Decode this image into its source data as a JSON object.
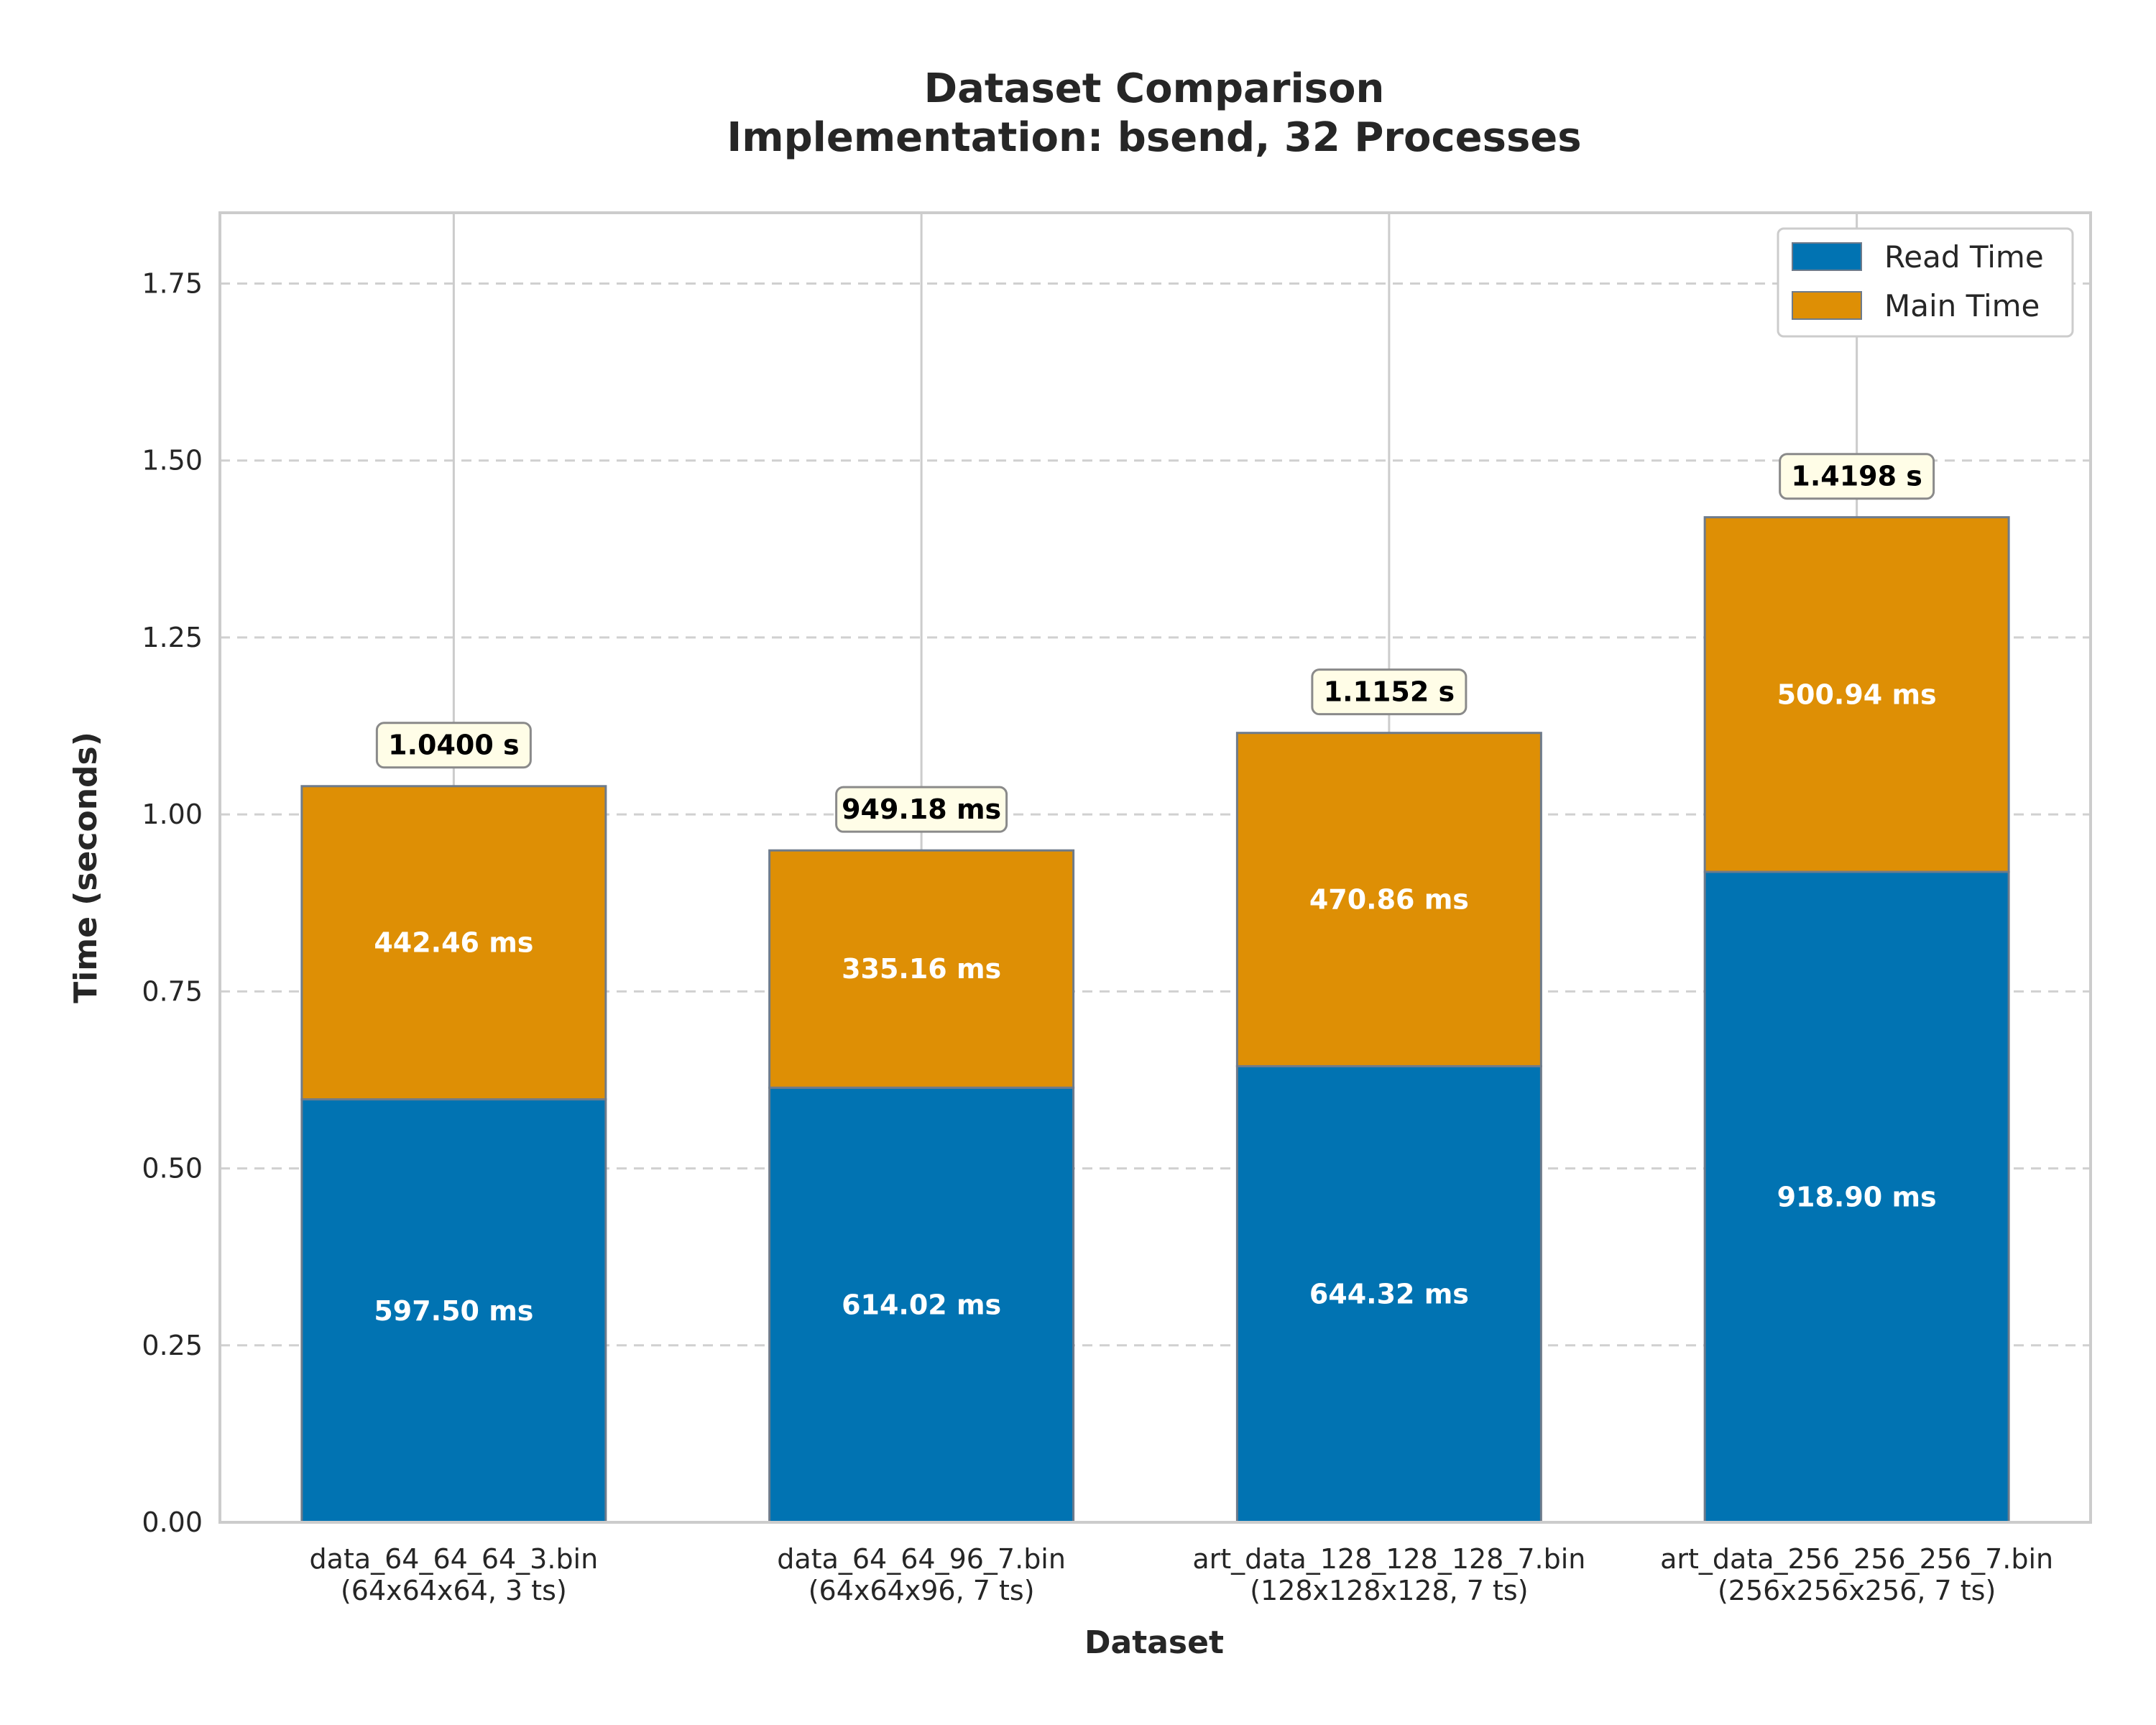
{
  "chart_data": {
    "type": "bar",
    "stacked": true,
    "title": "Dataset Comparison",
    "subtitle": "Implementation: bsend, 32 Processes",
    "xlabel": "Dataset",
    "ylabel": "Time (seconds)",
    "ylim": [
      0,
      1.85
    ],
    "yticks": [
      0.0,
      0.25,
      0.5,
      0.75,
      1.0,
      1.25,
      1.5,
      1.75
    ],
    "ytick_labels": [
      "0.00",
      "0.25",
      "0.50",
      "0.75",
      "1.00",
      "1.25",
      "1.50",
      "1.75"
    ],
    "grid": "y-dashed, x-solid",
    "legend_position": "top-right",
    "categories": [
      "data_64_64_64_3.bin\n(64x64x64, 3 ts)",
      "data_64_64_96_7.bin\n(64x64x96, 7 ts)",
      "art_data_128_128_128_7.bin\n(128x128x128, 7 ts)",
      "art_data_256_256_256_7.bin\n(256x256x256, 7 ts)"
    ],
    "series": [
      {
        "name": "Read Time",
        "color": "#0173b2",
        "values": [
          0.5975,
          0.61402,
          0.64432,
          0.9189
        ],
        "labels": [
          "597.50 ms",
          "614.02 ms",
          "644.32 ms",
          "918.90 ms"
        ]
      },
      {
        "name": "Main Time",
        "color": "#de8f05",
        "values": [
          0.44246,
          0.33516,
          0.47086,
          0.50094
        ],
        "labels": [
          "442.46 ms",
          "335.16 ms",
          "470.86 ms",
          "500.94 ms"
        ]
      }
    ],
    "totals": [
      1.04,
      0.94918,
      1.1152,
      1.4198
    ],
    "total_labels": [
      "1.0400 s",
      "949.18 ms",
      "1.1152 s",
      "1.4198 s"
    ]
  }
}
